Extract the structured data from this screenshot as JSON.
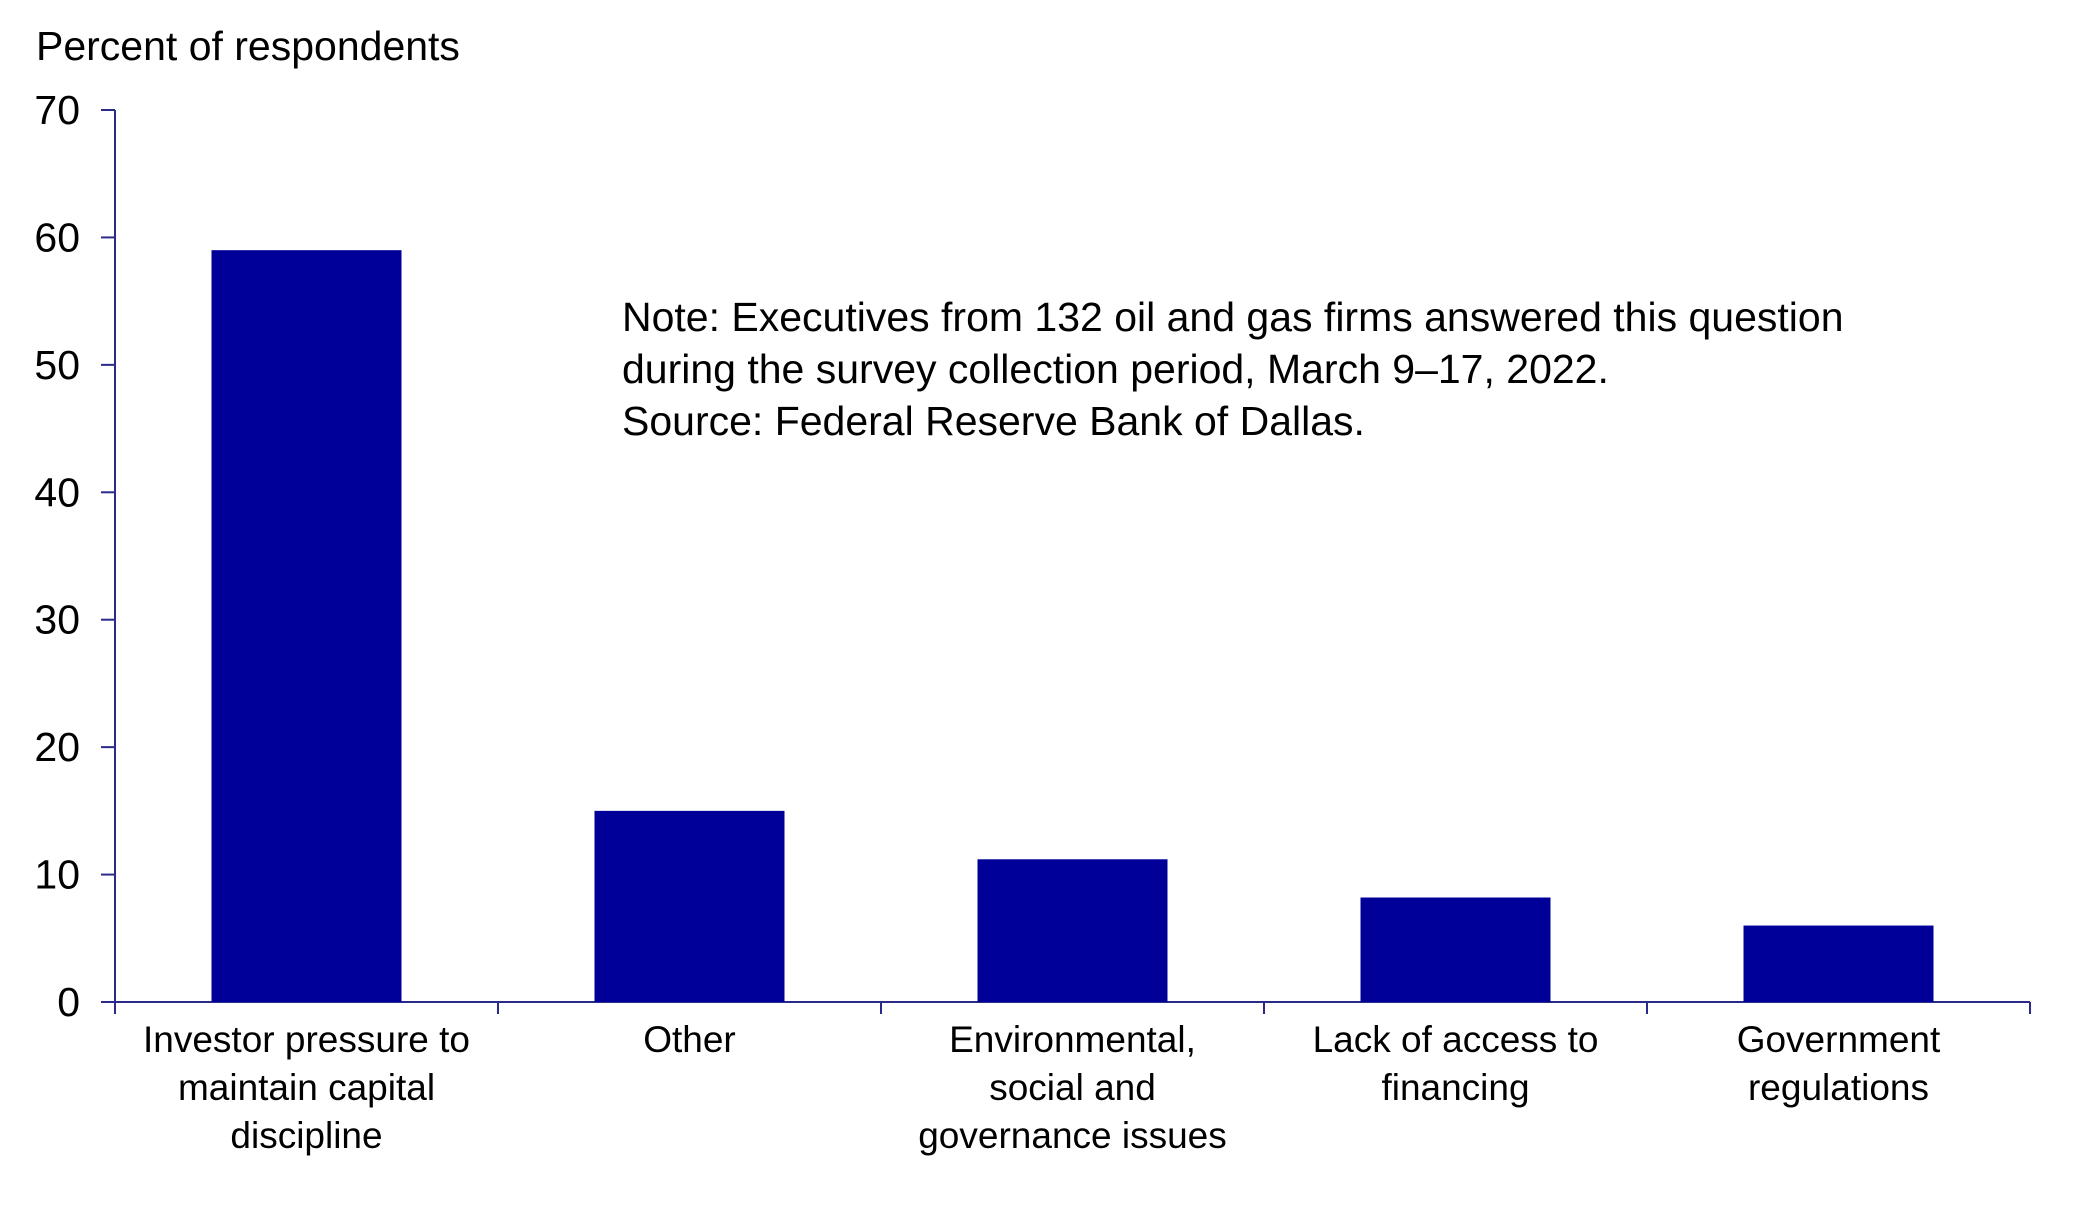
{
  "chart_data": {
    "type": "bar",
    "ylabel": "Percent of respondents",
    "xlabel": "",
    "ylim": [
      0,
      70
    ],
    "yticks": [
      0,
      10,
      20,
      30,
      40,
      50,
      60,
      70
    ],
    "grid": false,
    "bar_color": "#000099",
    "axis_color": "#2a2a8a",
    "categories": [
      [
        "Investor pressure to",
        "maintain capital",
        "discipline"
      ],
      [
        "Other"
      ],
      [
        "Environmental,",
        "social and",
        "governance issues"
      ],
      [
        "Lack of access to",
        "financing"
      ],
      [
        "Government",
        "regulations"
      ]
    ],
    "values": [
      59,
      15,
      11.2,
      8.2,
      6
    ],
    "annotation": [
      "Note: Executives from 132 oil and gas firms answered this question",
      "during the survey collection period, March 9–17, 2022.",
      "Source: Federal Reserve Bank of Dallas."
    ]
  }
}
